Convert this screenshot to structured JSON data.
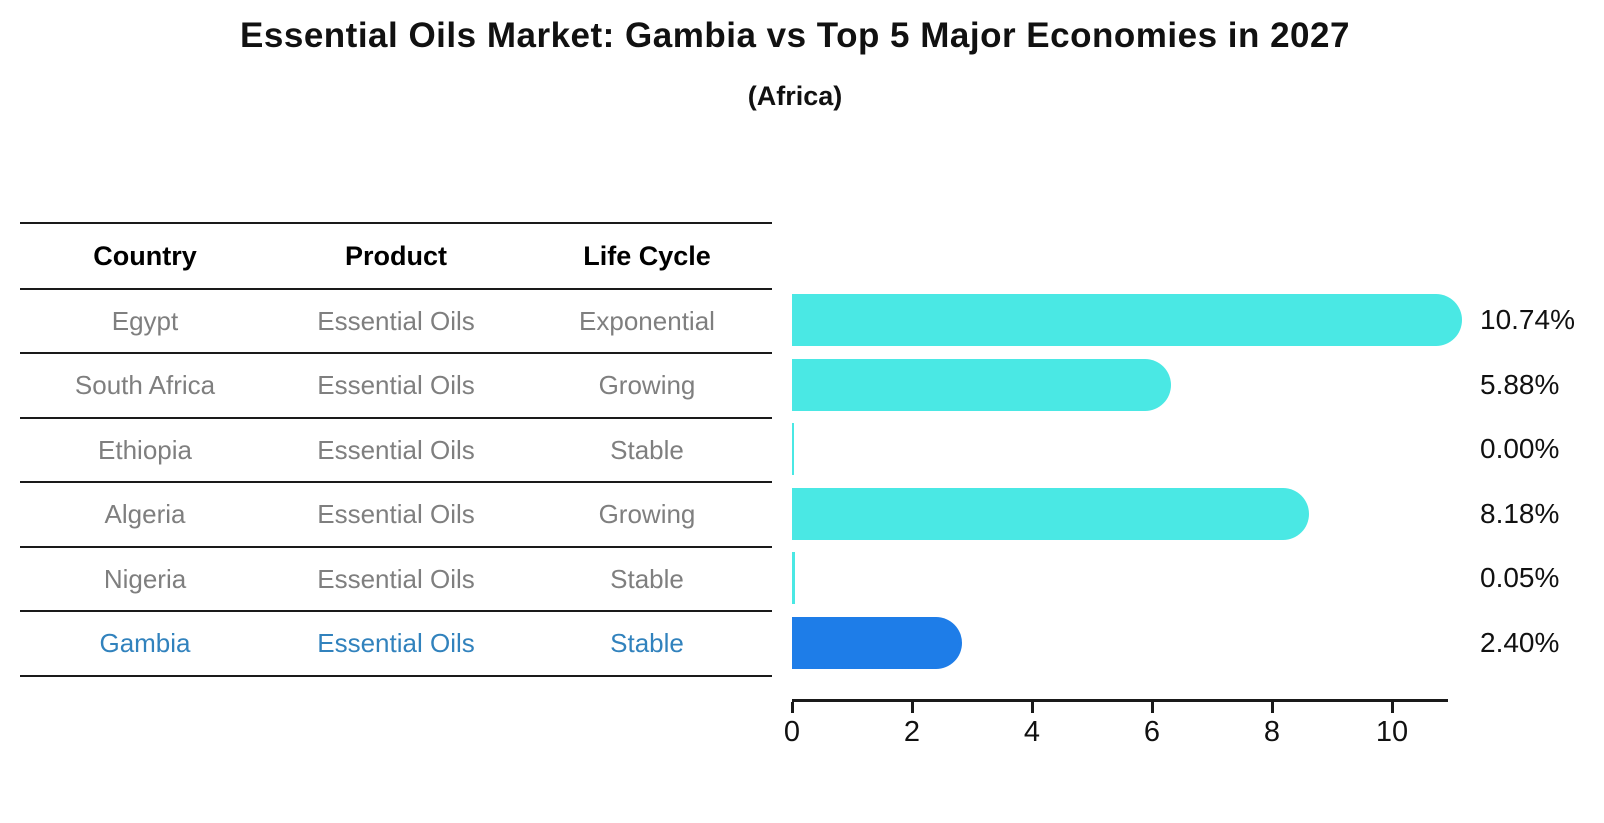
{
  "header": {
    "title": "Essential Oils Market: Gambia vs Top 5 Major Economies in 2027",
    "subtitle": "(Africa)"
  },
  "table": {
    "columns": {
      "country": "Country",
      "product": "Product",
      "life_cycle": "Life Cycle"
    },
    "rows": [
      {
        "country": "Egypt",
        "product": "Essential Oils",
        "life_cycle": "Exponential"
      },
      {
        "country": "South Africa",
        "product": "Essential Oils",
        "life_cycle": "Growing"
      },
      {
        "country": "Ethiopia",
        "product": "Essential Oils",
        "life_cycle": "Stable"
      },
      {
        "country": "Algeria",
        "product": "Essential Oils",
        "life_cycle": "Growing"
      },
      {
        "country": "Nigeria",
        "product": "Essential Oils",
        "life_cycle": "Stable"
      },
      {
        "country": "Gambia",
        "product": "Essential Oils",
        "life_cycle": "Stable"
      }
    ],
    "highlight_row": "Gambia"
  },
  "chart_data": {
    "type": "bar",
    "orientation": "horizontal",
    "title": "Essential Oils Market: Gambia vs Top 5 Major Economies in 2027",
    "subtitle": "(Africa)",
    "categories": [
      "Egypt",
      "South Africa",
      "Ethiopia",
      "Algeria",
      "Nigeria",
      "Gambia"
    ],
    "values": [
      10.74,
      5.88,
      0.0,
      8.18,
      0.05,
      2.4
    ],
    "value_labels": [
      "10.74%",
      "5.88%",
      "0.00%",
      "8.18%",
      "0.05%",
      "2.40%"
    ],
    "x_ticks": [
      "0",
      "2",
      "4",
      "6",
      "8",
      "10"
    ],
    "x_tick_values": [
      0,
      2,
      4,
      6,
      8,
      10
    ],
    "xlim": [
      0,
      10.9
    ],
    "grid": false,
    "legend": false,
    "bar_color": "#4ae8e4",
    "highlight_color": "#1e7de8",
    "highlight_index": 5,
    "highlight_text_color": "#3182bd"
  }
}
